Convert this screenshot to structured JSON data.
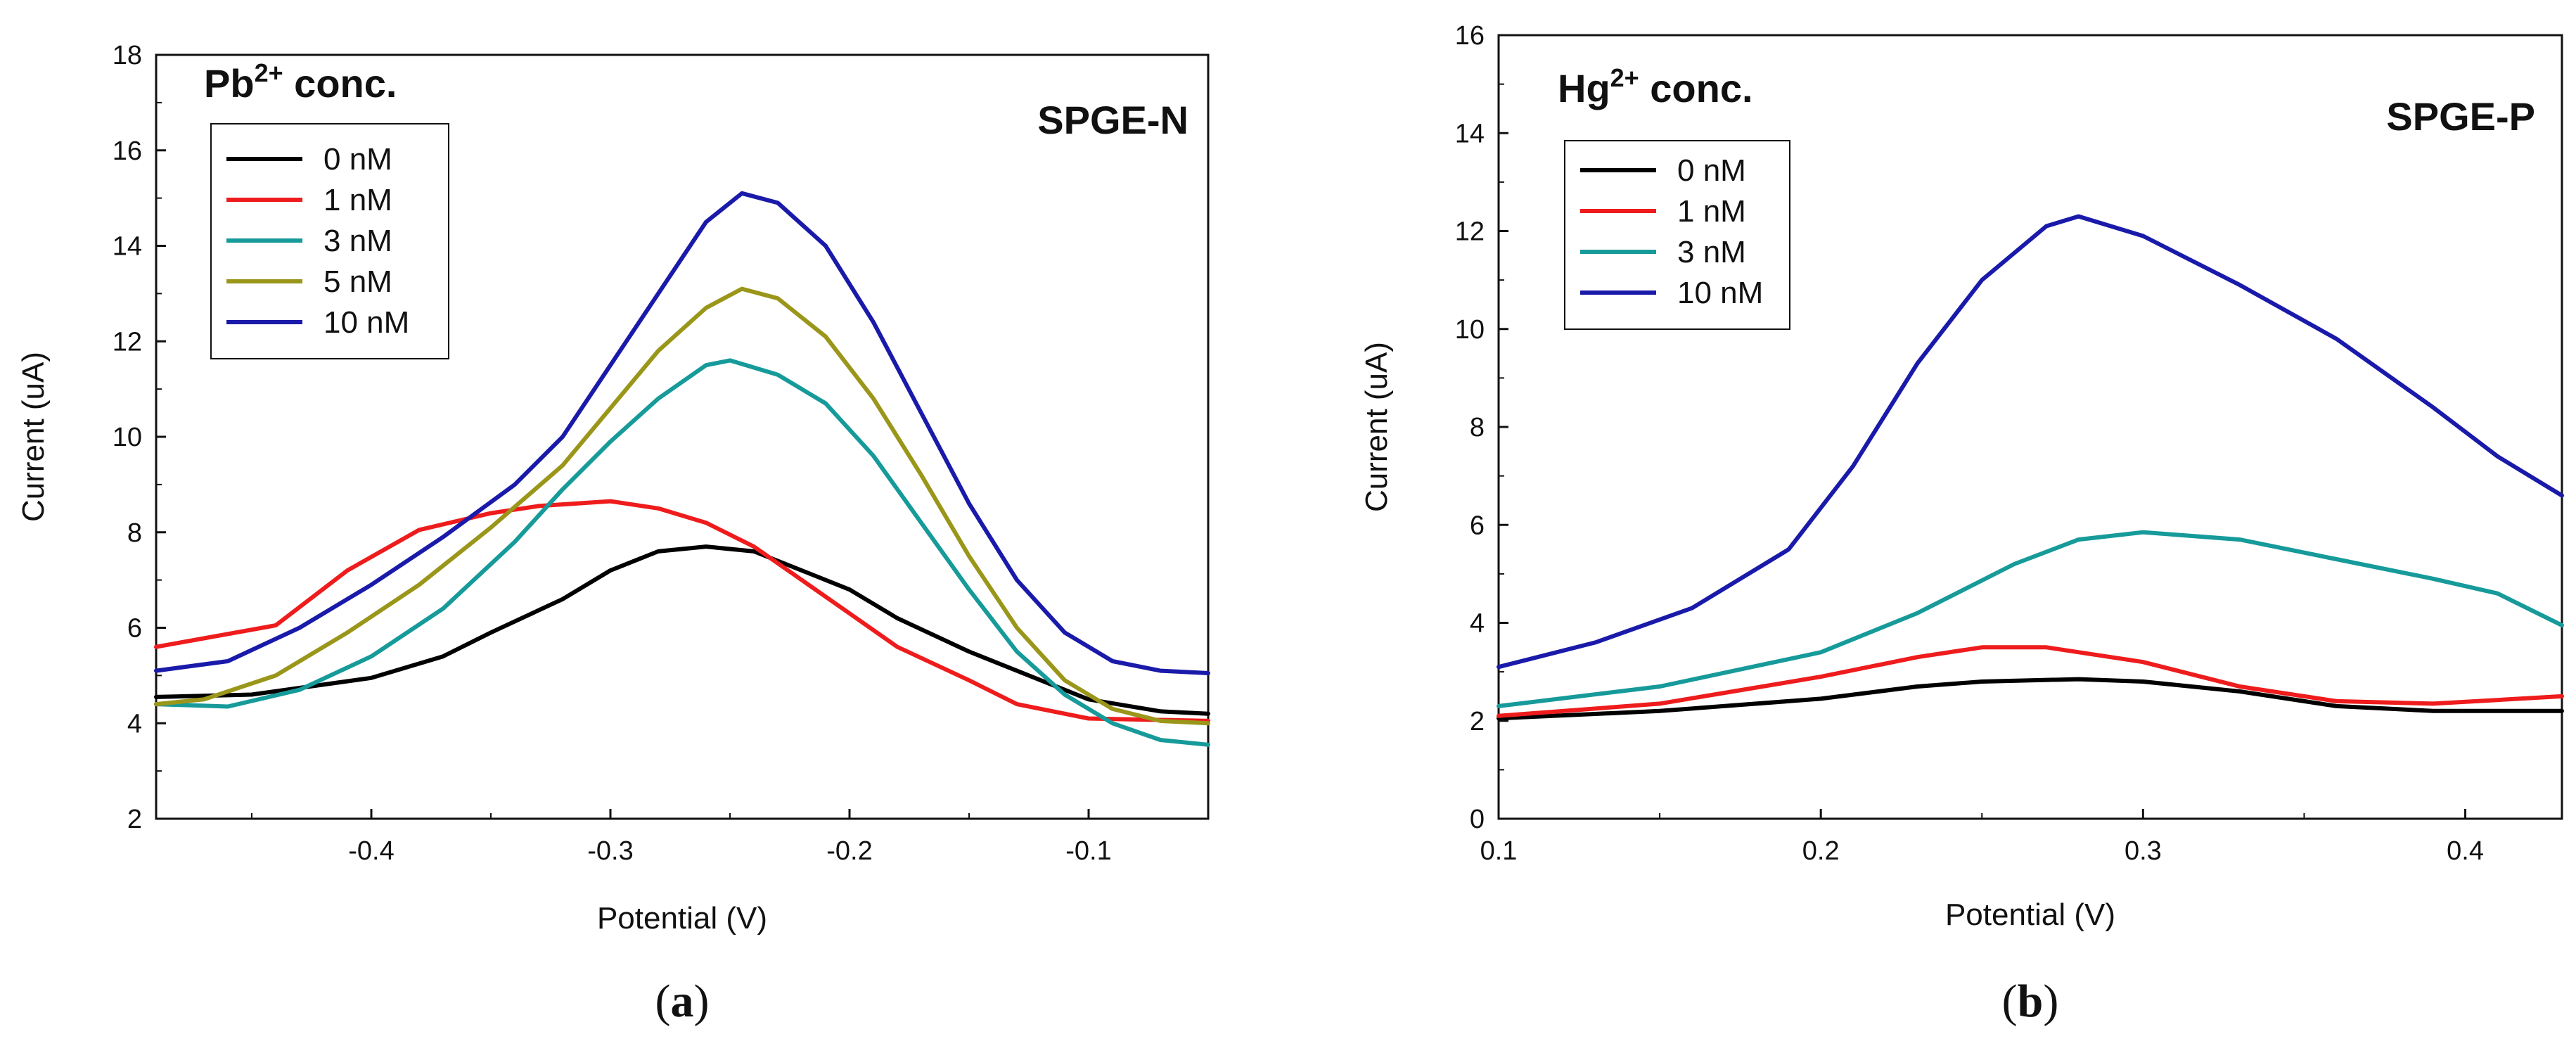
{
  "chart_data": [
    {
      "type": "line",
      "panel_label": "a",
      "annotation_prefix": "Pb",
      "annotation_superscript": "2+",
      "annotation_suffix": " conc.",
      "electrode_label": "SPGE-N",
      "xlabel": "Potential (V)",
      "ylabel": "Current (uA)",
      "xlim": [
        -0.49,
        -0.05
      ],
      "ylim": [
        2,
        18
      ],
      "xticks": [
        -0.4,
        -0.3,
        -0.2,
        -0.1
      ],
      "xtick_labels": [
        "-0.4",
        "-0.3",
        "-0.2",
        "-0.1"
      ],
      "yticks": [
        2,
        4,
        6,
        8,
        10,
        12,
        14,
        16,
        18
      ],
      "ytick_labels": [
        "2",
        "4",
        "6",
        "8",
        "10",
        "12",
        "14",
        "16",
        "18"
      ],
      "legend_position": "top-left",
      "series": [
        {
          "name": "0 nM",
          "color": "#000000",
          "points": [
            [
              -0.49,
              4.55
            ],
            [
              -0.45,
              4.6
            ],
            [
              -0.4,
              4.95
            ],
            [
              -0.37,
              5.4
            ],
            [
              -0.35,
              5.9
            ],
            [
              -0.32,
              6.6
            ],
            [
              -0.3,
              7.2
            ],
            [
              -0.28,
              7.6
            ],
            [
              -0.26,
              7.7
            ],
            [
              -0.24,
              7.6
            ],
            [
              -0.22,
              7.2
            ],
            [
              -0.2,
              6.8
            ],
            [
              -0.18,
              6.2
            ],
            [
              -0.15,
              5.5
            ],
            [
              -0.12,
              4.9
            ],
            [
              -0.1,
              4.5
            ],
            [
              -0.07,
              4.25
            ],
            [
              -0.05,
              4.2
            ]
          ]
        },
        {
          "name": "1 nM",
          "color": "#ee1c1c",
          "points": [
            [
              -0.49,
              5.6
            ],
            [
              -0.44,
              6.05
            ],
            [
              -0.41,
              7.2
            ],
            [
              -0.38,
              8.05
            ],
            [
              -0.35,
              8.4
            ],
            [
              -0.33,
              8.55
            ],
            [
              -0.3,
              8.65
            ],
            [
              -0.28,
              8.5
            ],
            [
              -0.26,
              8.2
            ],
            [
              -0.24,
              7.7
            ],
            [
              -0.22,
              7.0
            ],
            [
              -0.2,
              6.3
            ],
            [
              -0.18,
              5.6
            ],
            [
              -0.15,
              4.9
            ],
            [
              -0.13,
              4.4
            ],
            [
              -0.1,
              4.1
            ],
            [
              -0.05,
              4.05
            ]
          ]
        },
        {
          "name": "3 nM",
          "color": "#169a9a",
          "points": [
            [
              -0.49,
              4.4
            ],
            [
              -0.46,
              4.35
            ],
            [
              -0.43,
              4.7
            ],
            [
              -0.4,
              5.4
            ],
            [
              -0.37,
              6.4
            ],
            [
              -0.34,
              7.8
            ],
            [
              -0.32,
              8.9
            ],
            [
              -0.3,
              9.9
            ],
            [
              -0.28,
              10.8
            ],
            [
              -0.26,
              11.5
            ],
            [
              -0.25,
              11.6
            ],
            [
              -0.23,
              11.3
            ],
            [
              -0.21,
              10.7
            ],
            [
              -0.19,
              9.6
            ],
            [
              -0.17,
              8.2
            ],
            [
              -0.15,
              6.8
            ],
            [
              -0.13,
              5.5
            ],
            [
              -0.11,
              4.6
            ],
            [
              -0.09,
              4.0
            ],
            [
              -0.07,
              3.65
            ],
            [
              -0.05,
              3.55
            ]
          ]
        },
        {
          "name": "5 nM",
          "color": "#9a961a",
          "points": [
            [
              -0.49,
              4.4
            ],
            [
              -0.47,
              4.5
            ],
            [
              -0.44,
              5.0
            ],
            [
              -0.41,
              5.9
            ],
            [
              -0.38,
              6.9
            ],
            [
              -0.35,
              8.1
            ],
            [
              -0.32,
              9.4
            ],
            [
              -0.3,
              10.6
            ],
            [
              -0.28,
              11.8
            ],
            [
              -0.26,
              12.7
            ],
            [
              -0.245,
              13.1
            ],
            [
              -0.23,
              12.9
            ],
            [
              -0.21,
              12.1
            ],
            [
              -0.19,
              10.8
            ],
            [
              -0.17,
              9.2
            ],
            [
              -0.15,
              7.5
            ],
            [
              -0.13,
              6.0
            ],
            [
              -0.11,
              4.9
            ],
            [
              -0.09,
              4.3
            ],
            [
              -0.07,
              4.05
            ],
            [
              -0.05,
              4.0
            ]
          ]
        },
        {
          "name": "10 nM",
          "color": "#1a1aaa",
          "points": [
            [
              -0.49,
              5.1
            ],
            [
              -0.46,
              5.3
            ],
            [
              -0.43,
              6.0
            ],
            [
              -0.4,
              6.9
            ],
            [
              -0.37,
              7.9
            ],
            [
              -0.34,
              9.0
            ],
            [
              -0.32,
              10.0
            ],
            [
              -0.3,
              11.5
            ],
            [
              -0.28,
              13.0
            ],
            [
              -0.26,
              14.5
            ],
            [
              -0.245,
              15.1
            ],
            [
              -0.23,
              14.9
            ],
            [
              -0.21,
              14.0
            ],
            [
              -0.19,
              12.4
            ],
            [
              -0.17,
              10.5
            ],
            [
              -0.15,
              8.6
            ],
            [
              -0.13,
              7.0
            ],
            [
              -0.11,
              5.9
            ],
            [
              -0.09,
              5.3
            ],
            [
              -0.07,
              5.1
            ],
            [
              -0.05,
              5.05
            ]
          ]
        }
      ]
    },
    {
      "type": "line",
      "panel_label": "b",
      "annotation_prefix": "Hg",
      "annotation_superscript": "2+",
      "annotation_suffix": " conc.",
      "electrode_label": "SPGE-P",
      "xlabel": "Potential (V)",
      "ylabel": "Current (uA)",
      "xlim": [
        0.1,
        0.43
      ],
      "ylim": [
        0,
        16
      ],
      "xticks": [
        0.1,
        0.2,
        0.3,
        0.4
      ],
      "xtick_labels": [
        "0.1",
        "0.2",
        "0.3",
        "0.4"
      ],
      "yticks": [
        0,
        2,
        4,
        6,
        8,
        10,
        12,
        14,
        16
      ],
      "ytick_labels": [
        "0",
        "2",
        "4",
        "6",
        "8",
        "10",
        "12",
        "14",
        "16"
      ],
      "legend_position": "top-left",
      "series": [
        {
          "name": "0 nM",
          "color": "#000000",
          "points": [
            [
              0.1,
              2.05
            ],
            [
              0.15,
              2.2
            ],
            [
              0.2,
              2.45
            ],
            [
              0.23,
              2.7
            ],
            [
              0.25,
              2.8
            ],
            [
              0.28,
              2.85
            ],
            [
              0.3,
              2.8
            ],
            [
              0.33,
              2.6
            ],
            [
              0.36,
              2.3
            ],
            [
              0.39,
              2.2
            ],
            [
              0.43,
              2.2
            ]
          ]
        },
        {
          "name": "1 nM",
          "color": "#ee1c1c",
          "points": [
            [
              0.1,
              2.1
            ],
            [
              0.15,
              2.35
            ],
            [
              0.2,
              2.9
            ],
            [
              0.23,
              3.3
            ],
            [
              0.25,
              3.5
            ],
            [
              0.27,
              3.5
            ],
            [
              0.3,
              3.2
            ],
            [
              0.33,
              2.7
            ],
            [
              0.36,
              2.4
            ],
            [
              0.39,
              2.35
            ],
            [
              0.43,
              2.5
            ]
          ]
        },
        {
          "name": "3 nM",
          "color": "#169a9a",
          "points": [
            [
              0.1,
              2.3
            ],
            [
              0.15,
              2.7
            ],
            [
              0.2,
              3.4
            ],
            [
              0.23,
              4.2
            ],
            [
              0.26,
              5.2
            ],
            [
              0.28,
              5.7
            ],
            [
              0.3,
              5.85
            ],
            [
              0.33,
              5.7
            ],
            [
              0.36,
              5.3
            ],
            [
              0.39,
              4.9
            ],
            [
              0.41,
              4.6
            ],
            [
              0.43,
              3.95
            ]
          ]
        },
        {
          "name": "10 nM",
          "color": "#1a1aaa",
          "points": [
            [
              0.1,
              3.1
            ],
            [
              0.13,
              3.6
            ],
            [
              0.16,
              4.3
            ],
            [
              0.19,
              5.5
            ],
            [
              0.21,
              7.2
            ],
            [
              0.23,
              9.3
            ],
            [
              0.25,
              11.0
            ],
            [
              0.27,
              12.1
            ],
            [
              0.28,
              12.3
            ],
            [
              0.3,
              11.9
            ],
            [
              0.33,
              10.9
            ],
            [
              0.36,
              9.8
            ],
            [
              0.39,
              8.4
            ],
            [
              0.41,
              7.4
            ],
            [
              0.43,
              6.6
            ]
          ]
        }
      ]
    }
  ]
}
